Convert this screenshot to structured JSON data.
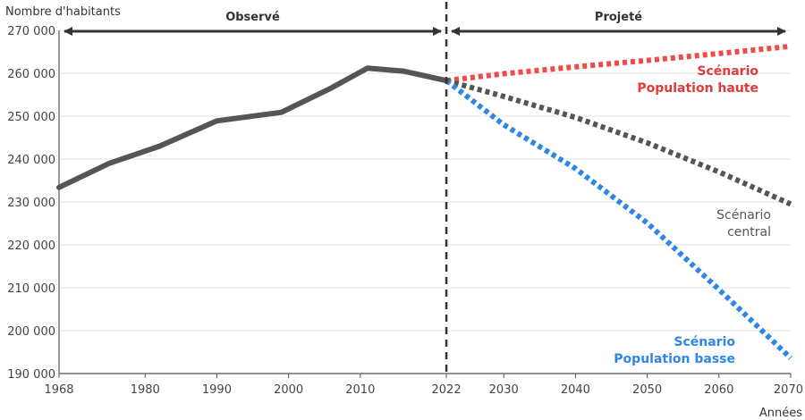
{
  "chart_data": {
    "type": "line",
    "ylabel": "Nombre d'habitants",
    "xlabel": "Années",
    "xlim": [
      1968,
      2070
    ],
    "ylim": [
      190000,
      270000
    ],
    "x_ticks": [
      1968,
      1980,
      1990,
      2000,
      2010,
      2022,
      2030,
      2040,
      2050,
      2060,
      2070
    ],
    "y_ticks": [
      190000,
      200000,
      210000,
      220000,
      230000,
      240000,
      250000,
      260000,
      270000
    ],
    "y_tick_labels": [
      "190 000",
      "200 000",
      "210 000",
      "220 000",
      "230 000",
      "240 000",
      "250 000",
      "260 000",
      "270 000"
    ],
    "grid": "horizontal",
    "divider_year": 2022,
    "periods": [
      {
        "label": "Observé",
        "from": 1968,
        "to": 2022
      },
      {
        "label": "Projeté",
        "from": 2022,
        "to": 2070
      }
    ],
    "series": [
      {
        "key": "observed",
        "color": "#555555",
        "style": "solid",
        "x": [
          1968,
          1975,
          1982,
          1990,
          1999,
          2006,
          2011,
          2016,
          2022
        ],
        "y": [
          233400,
          239000,
          243000,
          248900,
          250900,
          256600,
          261200,
          260500,
          258300
        ]
      },
      {
        "key": "high",
        "color": "#ee4b4b",
        "style": "dotted",
        "x": [
          2022,
          2030,
          2040,
          2050,
          2060,
          2070
        ],
        "y": [
          258300,
          259900,
          261500,
          263000,
          264600,
          266300
        ]
      },
      {
        "key": "central",
        "color": "#555555",
        "style": "dotted",
        "x": [
          2022,
          2030,
          2040,
          2050,
          2060,
          2070
        ],
        "y": [
          258300,
          254600,
          249700,
          243800,
          237000,
          229500
        ]
      },
      {
        "key": "low",
        "color": "#2e86e8",
        "style": "dotted",
        "x": [
          2022,
          2030,
          2040,
          2050,
          2060,
          2070
        ],
        "y": [
          258300,
          248000,
          237800,
          225100,
          209600,
          193600
        ]
      }
    ],
    "annotations": [
      {
        "key": "high",
        "lines": [
          "Scénario",
          "Population haute"
        ],
        "color": "#e23a3a"
      },
      {
        "key": "central",
        "lines": [
          "Scénario",
          "central"
        ],
        "color": "#555555"
      },
      {
        "key": "low",
        "lines": [
          "Scénario",
          "Population basse"
        ],
        "color": "#2e86e8"
      }
    ]
  }
}
